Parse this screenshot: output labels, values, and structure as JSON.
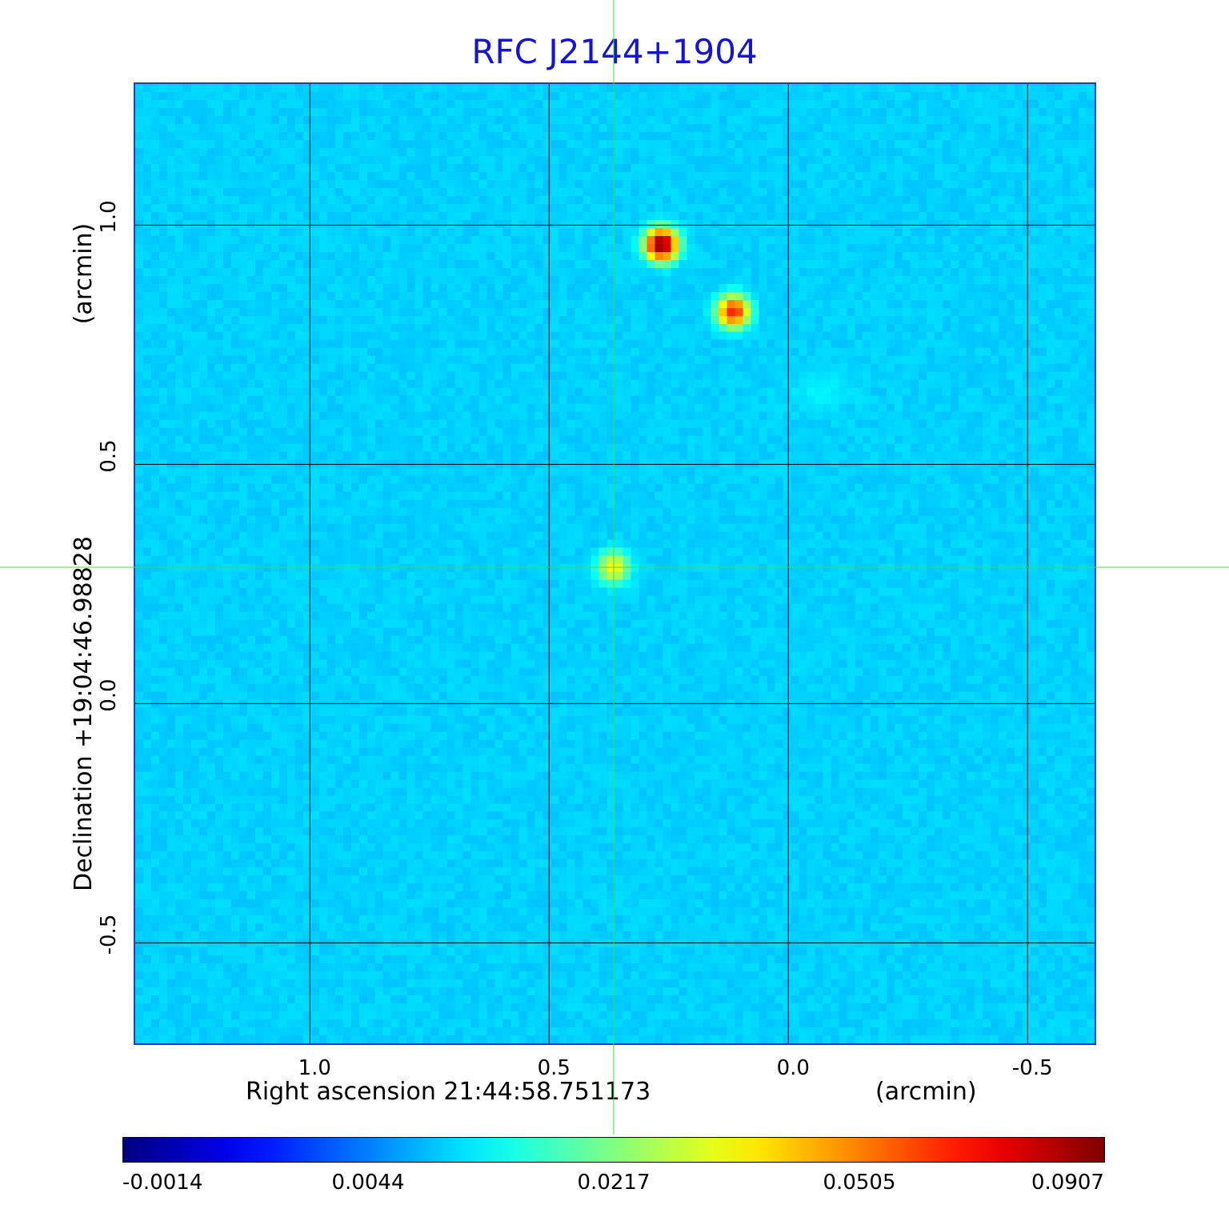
{
  "title": "RFC J2144+1904",
  "x_axis": {
    "label": "Right ascension  21:44:58.751173",
    "unit": "(arcmin)",
    "ticks": [
      {
        "value": 1.0,
        "label": "1.0"
      },
      {
        "value": 0.5,
        "label": "0.5"
      },
      {
        "value": 0.0,
        "label": "0.0"
      },
      {
        "value": -0.5,
        "label": "-0.5"
      }
    ],
    "range": [
      1.365,
      -0.64
    ]
  },
  "y_axis": {
    "label": "Declination  +19:04:46.98828",
    "unit": "(arcmin)",
    "ticks": [
      {
        "value": 1.0,
        "label": "1.0"
      },
      {
        "value": 0.5,
        "label": "0.5"
      },
      {
        "value": 0.0,
        "label": "0.0"
      },
      {
        "value": -0.5,
        "label": "-0.5"
      }
    ],
    "range": [
      -0.71,
      1.295
    ]
  },
  "colorbar": {
    "colormap": "jet",
    "labels": [
      "-0.0014",
      "0.0044",
      "0.0217",
      "0.0505",
      "0.0907"
    ]
  },
  "sources": [
    {
      "ra_arcmin": 0.265,
      "dec_arcmin": 0.96,
      "peak": 0.0907
    },
    {
      "ra_arcmin": 0.115,
      "dec_arcmin": 0.82,
      "peak": 0.058
    },
    {
      "ra_arcmin": 0.365,
      "dec_arcmin": 0.285,
      "peak": 0.024
    }
  ],
  "crosshair": {
    "ra_arcmin": 0.365,
    "dec_arcmin": 0.285
  },
  "colors": {
    "title": "#1414d4",
    "grid": "#000000",
    "crosshair": "#40e040",
    "frame": "#1a3cdc"
  }
}
